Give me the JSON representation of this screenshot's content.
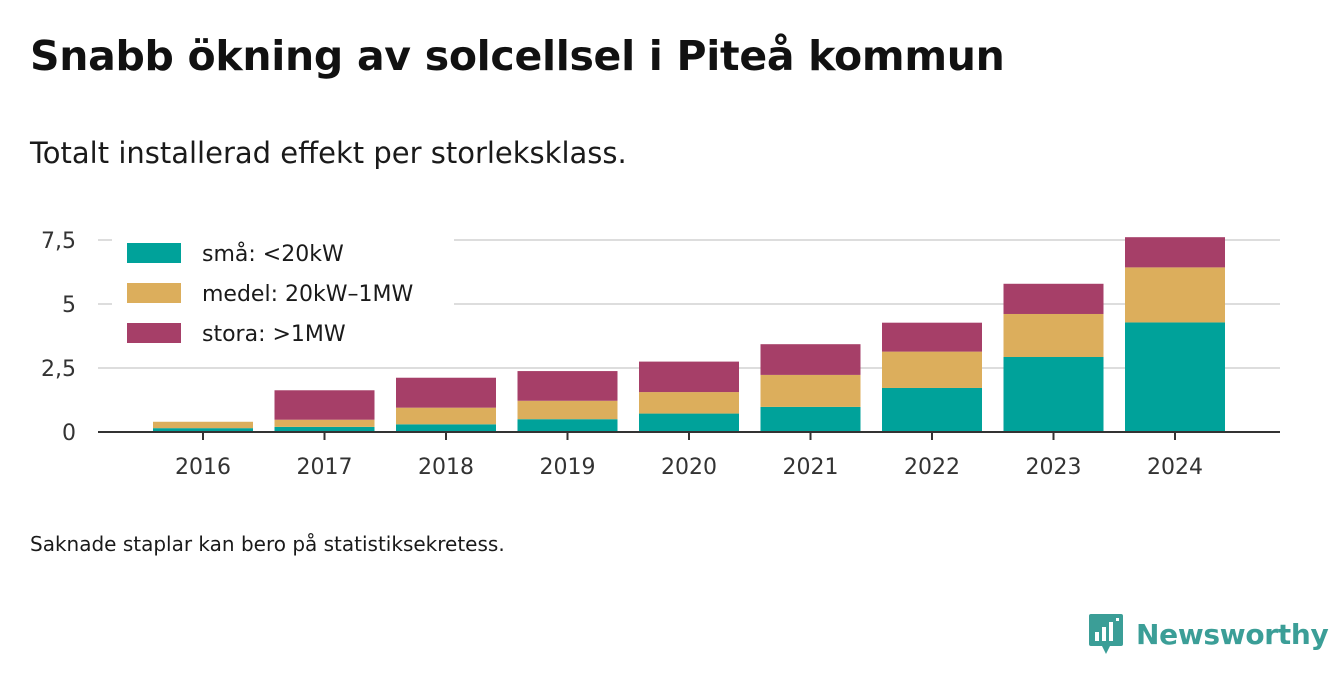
{
  "title": "Snabb ökning av solcellsel i Piteå kommun",
  "subtitle": "Totalt installerad effekt per storleksklass.",
  "note": "Saknade staplar kan bero på statistiksekretess.",
  "brand": {
    "name": "Newsworthy",
    "color": "#3b9e97",
    "icon": "newsworthy-bar-chart-icon"
  },
  "chart_data": {
    "type": "bar",
    "stacked": true,
    "categories": [
      "2016",
      "2017",
      "2018",
      "2019",
      "2020",
      "2021",
      "2022",
      "2023",
      "2024"
    ],
    "series": [
      {
        "name": "små: <20kW",
        "color": "#00a29a",
        "values": [
          0.15,
          0.2,
          0.3,
          0.5,
          0.72,
          0.98,
          1.72,
          2.93,
          4.28
        ]
      },
      {
        "name": "medel: 20kW–1MW",
        "color": "#dcae5c",
        "values": [
          0.25,
          0.28,
          0.65,
          0.72,
          0.84,
          1.25,
          1.42,
          1.68,
          2.15
        ]
      },
      {
        "name": "stora: >1MW",
        "color": "#a63f68",
        "values": [
          0,
          1.15,
          1.17,
          1.16,
          1.19,
          1.2,
          1.13,
          1.18,
          1.18
        ]
      }
    ],
    "y_ticks": [
      0,
      2.5,
      5,
      7.5
    ],
    "y_tick_labels": [
      "0",
      "2,5",
      "5",
      "7,5"
    ],
    "ylim": [
      0,
      7.5
    ],
    "grid": true,
    "legend_position": "top-left",
    "xlabel": "",
    "ylabel": ""
  }
}
